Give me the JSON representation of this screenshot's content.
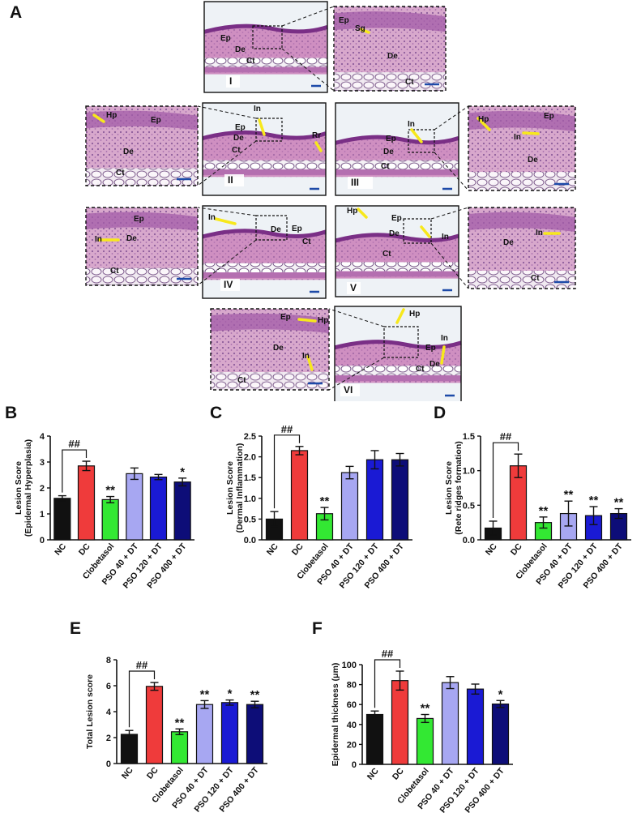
{
  "panels": {
    "a": "A",
    "b": "B",
    "c": "C",
    "d": "D",
    "e": "E",
    "f": "F"
  },
  "micrographs": [
    {
      "group": "I",
      "labels": [
        "Ep",
        "De",
        "Ct"
      ],
      "zoom_labels": [
        "Ep",
        "Sg",
        "De",
        "Ct"
      ]
    },
    {
      "group": "II",
      "labels": [
        "In",
        "Ep",
        "De",
        "Ct",
        "Rr"
      ],
      "zoom_labels": [
        "Hp",
        "Ep",
        "De",
        "Ct"
      ]
    },
    {
      "group": "III",
      "labels": [
        "In",
        "Ep",
        "De",
        "Ct"
      ],
      "zoom_labels": [
        "Hp",
        "Ep",
        "In",
        "De"
      ]
    },
    {
      "group": "IV",
      "labels": [
        "In",
        "De",
        "Ep",
        "Ct"
      ],
      "zoom_labels": [
        "Ep",
        "In",
        "De",
        "Ct"
      ]
    },
    {
      "group": "V",
      "labels": [
        "Hp",
        "Ep",
        "De",
        "In",
        "Ct"
      ],
      "zoom_labels": [
        "De",
        "In",
        "Ct"
      ]
    },
    {
      "group": "VI",
      "labels": [
        "Hp",
        "Ep",
        "In",
        "De",
        "Ct"
      ],
      "zoom_labels": [
        "Ep",
        "Hp",
        "De",
        "In",
        "Ct"
      ]
    }
  ],
  "colors": {
    "NC": "#111111",
    "DC": "#ef3b3b",
    "Clobetasol": "#33e833",
    "PSO 40 + DT": "#a7a7f2",
    "PSO 120 + DT": "#1a1ad4",
    "PSO 400 + DT": "#0d0d78",
    "arrow": "#f7e81c",
    "scalebar": "#1d4aa8"
  },
  "chart_data": [
    {
      "panel": "B",
      "type": "bar",
      "ylabel": "Lesion Score\n(Epidermal Hyperplasia)",
      "ylim": [
        0,
        4
      ],
      "yticks": [
        "0",
        "1",
        "2",
        "3",
        "4"
      ],
      "categories": [
        "NC",
        "DC",
        "Clobetasol",
        "PSO 40 + DT",
        "PSO 120 + DT",
        "PSO 400 + DT"
      ],
      "values": [
        1.6,
        2.85,
        1.55,
        2.55,
        2.42,
        2.23
      ],
      "errors": [
        0.1,
        0.18,
        0.12,
        0.22,
        0.1,
        0.15
      ],
      "annotations": [
        "",
        "",
        "**",
        "",
        "",
        "*"
      ],
      "bracket": "##"
    },
    {
      "panel": "C",
      "type": "bar",
      "ylabel": "Lesion Score\n(Dermal Inflammation)",
      "ylim": [
        0,
        2.5
      ],
      "yticks": [
        "0.0",
        "0.5",
        "1.0",
        "1.5",
        "2.0",
        "2.5"
      ],
      "categories": [
        "NC",
        "DC",
        "Clobetasol",
        "PSO 40 + DT",
        "PSO 120 + DT",
        "PSO 400 + DT"
      ],
      "values": [
        0.5,
        2.15,
        0.63,
        1.62,
        1.93,
        1.93
      ],
      "errors": [
        0.18,
        0.1,
        0.15,
        0.15,
        0.22,
        0.15
      ],
      "annotations": [
        "",
        "",
        "**",
        "",
        "",
        ""
      ],
      "bracket": "##"
    },
    {
      "panel": "D",
      "type": "bar",
      "ylabel": "Lesion Score\n(Rete ridges formation)",
      "ylim": [
        0,
        1.5
      ],
      "yticks": [
        "0.0",
        "0.5",
        "1.0",
        "1.5"
      ],
      "categories": [
        "NC",
        "DC",
        "Clobetasol",
        "PSO 40 + DT",
        "PSO 120 + DT",
        "PSO 400 + DT"
      ],
      "values": [
        0.17,
        1.07,
        0.25,
        0.38,
        0.35,
        0.38
      ],
      "errors": [
        0.1,
        0.17,
        0.08,
        0.18,
        0.13,
        0.07
      ],
      "annotations": [
        "",
        "",
        "**",
        "**",
        "**",
        "**"
      ],
      "bracket": "##"
    },
    {
      "panel": "E",
      "type": "bar",
      "ylabel": "Total Lesion score",
      "ylim": [
        0,
        8
      ],
      "yticks": [
        "0",
        "2",
        "4",
        "6",
        "8"
      ],
      "categories": [
        "NC",
        "DC",
        "Clobetasol",
        "PSO 40 + DT",
        "PSO 120 + DT",
        "PSO 400 + DT"
      ],
      "values": [
        2.25,
        5.95,
        2.45,
        4.55,
        4.7,
        4.55
      ],
      "errors": [
        0.3,
        0.3,
        0.22,
        0.3,
        0.2,
        0.25
      ],
      "annotations": [
        "",
        "",
        "**",
        "**",
        "*",
        "**"
      ],
      "bracket": "##"
    },
    {
      "panel": "F",
      "type": "bar",
      "ylabel": "Epidermal thickness (μm)",
      "ylim": [
        0,
        100
      ],
      "yticks": [
        "0",
        "20",
        "40",
        "60",
        "80",
        "100"
      ],
      "categories": [
        "NC",
        "DC",
        "Clobetasol",
        "PSO 40 + DT",
        "PSO 120 + DT",
        "PSO 400 + DT"
      ],
      "values": [
        50,
        84,
        46,
        82,
        75.5,
        60.5
      ],
      "errors": [
        3.5,
        9.5,
        4,
        6,
        5,
        3.5
      ],
      "annotations": [
        "",
        "",
        "**",
        "",
        "",
        "*"
      ],
      "bracket": "##"
    }
  ]
}
